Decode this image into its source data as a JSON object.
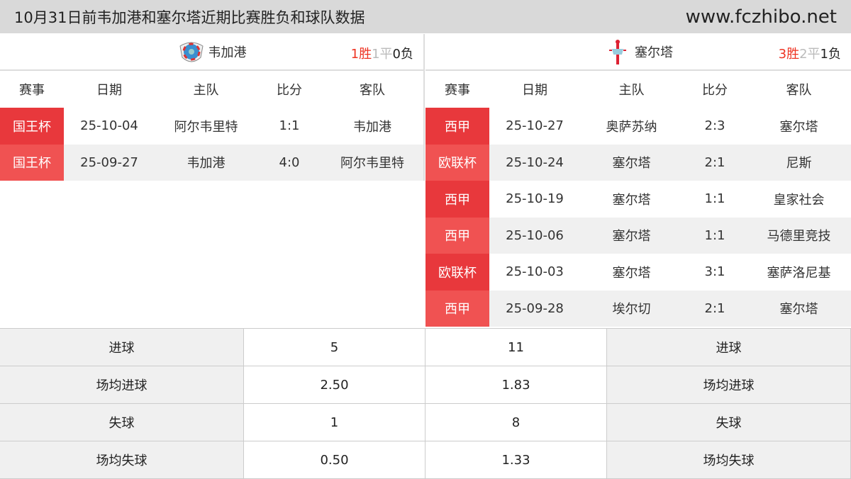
{
  "header": {
    "title": "10月31日前韦加港和塞尔塔近期比赛胜负和球队数据",
    "site": "www.fczhibo.net"
  },
  "columns": [
    "赛事",
    "日期",
    "主队",
    "比分",
    "客队"
  ],
  "left": {
    "team": "韦加港",
    "record": {
      "w": "1",
      "w_label": "胜",
      "d": "1",
      "d_label": "平",
      "l": "0",
      "l_label": "负"
    },
    "matches": [
      {
        "comp": "国王杯",
        "date": "25-10-04",
        "home": "阿尔韦里特",
        "score": "1:1",
        "away": "韦加港"
      },
      {
        "comp": "国王杯",
        "date": "25-09-27",
        "home": "韦加港",
        "score": "4:0",
        "away": "阿尔韦里特"
      }
    ]
  },
  "right": {
    "team": "塞尔塔",
    "record": {
      "w": "3",
      "w_label": "胜",
      "d": "2",
      "d_label": "平",
      "l": "1",
      "l_label": "负"
    },
    "matches": [
      {
        "comp": "西甲",
        "date": "25-10-27",
        "home": "奥萨苏纳",
        "score": "2:3",
        "away": "塞尔塔"
      },
      {
        "comp": "欧联杯",
        "date": "25-10-24",
        "home": "塞尔塔",
        "score": "2:1",
        "away": "尼斯"
      },
      {
        "comp": "西甲",
        "date": "25-10-19",
        "home": "塞尔塔",
        "score": "1:1",
        "away": "皇家社会"
      },
      {
        "comp": "西甲",
        "date": "25-10-06",
        "home": "塞尔塔",
        "score": "1:1",
        "away": "马德里竞技"
      },
      {
        "comp": "欧联杯",
        "date": "25-10-03",
        "home": "塞尔塔",
        "score": "3:1",
        "away": "塞萨洛尼基"
      },
      {
        "comp": "西甲",
        "date": "25-09-28",
        "home": "埃尔切",
        "score": "2:1",
        "away": "塞尔塔"
      }
    ]
  },
  "stats": [
    {
      "label": "进球",
      "left": "5",
      "right": "11"
    },
    {
      "label": "场均进球",
      "left": "2.50",
      "right": "1.83"
    },
    {
      "label": "失球",
      "left": "1",
      "right": "8"
    },
    {
      "label": "场均失球",
      "left": "0.50",
      "right": "1.33"
    }
  ],
  "colors": {
    "badge": "#e8383c",
    "win": "#ee3322",
    "draw": "#bbbbbb"
  }
}
